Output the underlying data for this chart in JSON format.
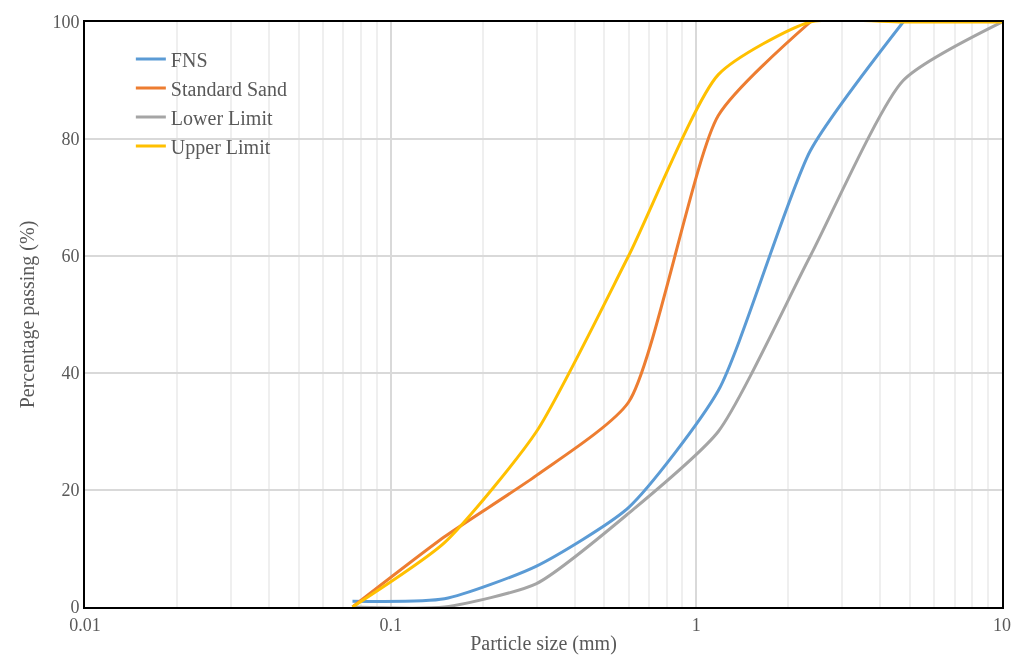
{
  "chart_data": {
    "type": "line",
    "xlabel": "Particle size (mm)",
    "ylabel": "Percentage passing (%)",
    "x": [
      0.075,
      0.15,
      0.3,
      0.6,
      1.18,
      2.36,
      4.75,
      10
    ],
    "series": [
      {
        "name": "FNS",
        "color": "#5b9bd5",
        "values": [
          1,
          1.4,
          7,
          17,
          37,
          78,
          100,
          null
        ]
      },
      {
        "name": "Standard Sand",
        "color": "#ed7d31",
        "values": [
          0,
          12,
          22.5,
          35,
          84,
          100,
          null,
          null
        ]
      },
      {
        "name": "Lower Limit",
        "color": "#a5a5a5",
        "values": [
          0,
          0,
          4,
          16,
          30,
          60,
          90,
          100
        ]
      },
      {
        "name": "Upper Limit",
        "color": "#ffc000",
        "values": [
          0,
          11,
          30,
          60,
          91,
          100,
          100,
          100
        ]
      }
    ],
    "log": "x",
    "xlim": [
      0.01,
      10
    ],
    "xticks": [
      0.01,
      0.1,
      1,
      10
    ],
    "ylim": [
      0,
      100
    ],
    "yticks": [
      0,
      20,
      40,
      60,
      80,
      100
    ],
    "grid": true,
    "legend": "top left",
    "line_style": "solid",
    "marker": "none"
  }
}
